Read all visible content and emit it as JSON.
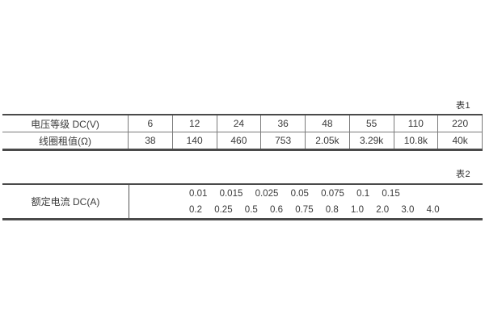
{
  "table1": {
    "caption": "表1",
    "rows": [
      {
        "label": "电压等级 DC(V)",
        "values": [
          "6",
          "12",
          "24",
          "36",
          "48",
          "55",
          "110",
          "220"
        ]
      },
      {
        "label": "线圈租值(Ω)",
        "values": [
          "38",
          "140",
          "460",
          "753",
          "2.05k",
          "3.29k",
          "10.8k",
          "40k"
        ]
      }
    ]
  },
  "table2": {
    "caption": "表2",
    "label": "额定电流 DC(A)",
    "line1": [
      "0.01",
      "0.015",
      "0.025",
      "0.05",
      "0.075",
      "0.1",
      "0.15"
    ],
    "line2": [
      "0.2",
      "0.25",
      "0.5",
      "0.6",
      "0.75",
      "0.8",
      "1.0",
      "2.0",
      "3.0",
      "4.0"
    ]
  },
  "colors": {
    "rule_heavy": "#4a4a4a",
    "rule_light": "#7a7a7a",
    "text": "#3a3a3a"
  }
}
